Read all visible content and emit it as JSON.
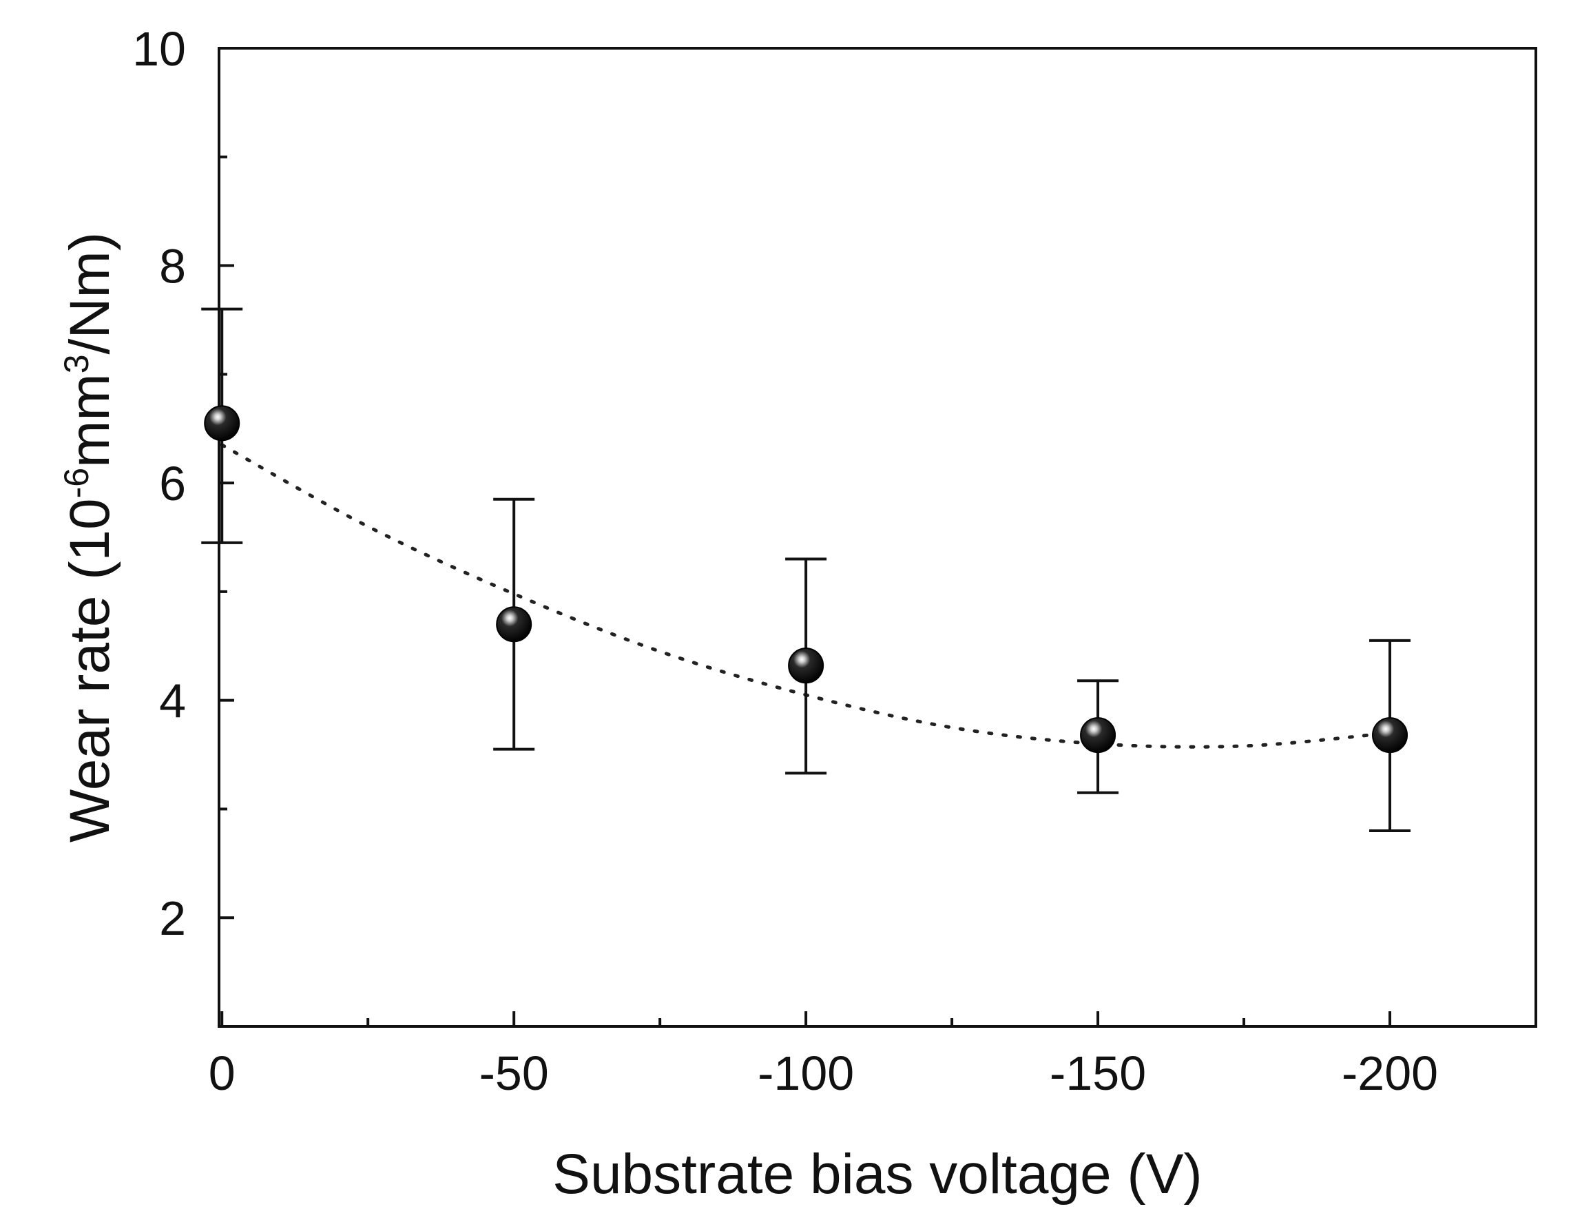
{
  "chart_data": {
    "type": "scatter",
    "title": "",
    "xlabel": "Substrate bias voltage (V)",
    "ylabel": {
      "prefix": "Wear rate (10",
      "exp1": "-6",
      "mid": "mm",
      "exp2": "3",
      "suffix": "/Nm)"
    },
    "x_categories": [
      "0",
      "-50",
      "-100",
      "-150",
      "-200"
    ],
    "xlim": [
      0.5,
      -225
    ],
    "ylim": [
      1,
      10
    ],
    "y_ticks": [
      2,
      4,
      6,
      8,
      10
    ],
    "y_tick_labels": [
      "2",
      "4",
      "6",
      "8",
      "10"
    ],
    "series": [
      {
        "name": "Wear rate",
        "x": [
          0,
          -50,
          -100,
          -150,
          -200
        ],
        "y": [
          6.55,
          4.7,
          4.32,
          3.68,
          3.68
        ],
        "err_low": [
          5.45,
          3.55,
          3.33,
          3.15,
          2.8
        ],
        "err_high": [
          7.6,
          5.85,
          5.3,
          4.18,
          4.55
        ]
      }
    ],
    "trend": {
      "style": "dotted",
      "x": [
        0,
        -25,
        -50,
        -75,
        -100,
        -125,
        -150,
        -175,
        -200
      ],
      "y": [
        6.35,
        5.6,
        4.98,
        4.45,
        4.05,
        3.75,
        3.6,
        3.58,
        3.7
      ]
    },
    "grid": false,
    "legend": "none",
    "colors": {
      "axis": "#111111",
      "marker": "#0a0a0a",
      "highlight": "#ffffff"
    }
  }
}
